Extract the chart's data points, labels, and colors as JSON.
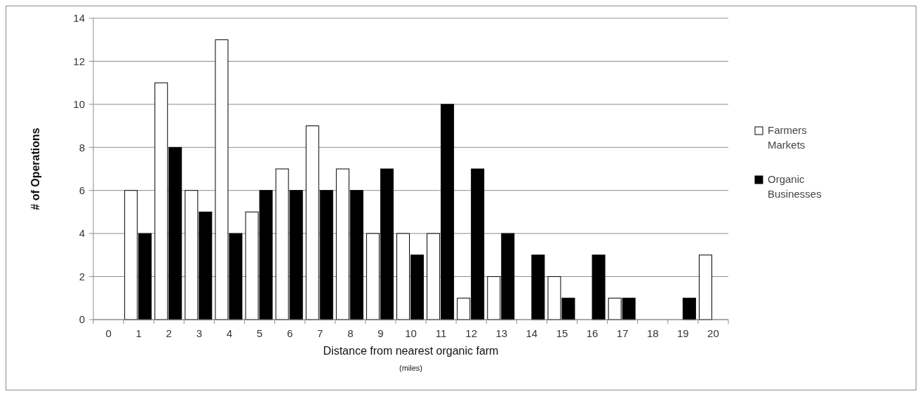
{
  "chart_data": {
    "type": "bar",
    "ylabel": "# of Operations",
    "xlabel": "Distance from nearest organic farm",
    "annotations": [
      "(miles)"
    ],
    "categories": [
      "0",
      "1",
      "2",
      "3",
      "4",
      "5",
      "6",
      "7",
      "8",
      "9",
      "10",
      "11",
      "12",
      "13",
      "14",
      "15",
      "16",
      "17",
      "18",
      "19",
      "20"
    ],
    "series": [
      {
        "name": "Farmers Markets",
        "color": "#ffffff",
        "values": [
          0,
          6,
          11,
          6,
          13,
          5,
          7,
          9,
          7,
          4,
          4,
          4,
          1,
          2,
          0,
          2,
          0,
          1,
          0,
          0,
          3
        ]
      },
      {
        "name": "Organic Businesses",
        "color": "#000000",
        "values": [
          0,
          4,
          8,
          5,
          4,
          6,
          6,
          6,
          6,
          7,
          3,
          10,
          7,
          4,
          3,
          1,
          3,
          1,
          0,
          1,
          0
        ]
      }
    ],
    "ylim": [
      0,
      14
    ],
    "yticks": [
      0,
      2,
      4,
      6,
      8,
      10,
      12,
      14
    ],
    "grid": "y",
    "legend": "right"
  }
}
